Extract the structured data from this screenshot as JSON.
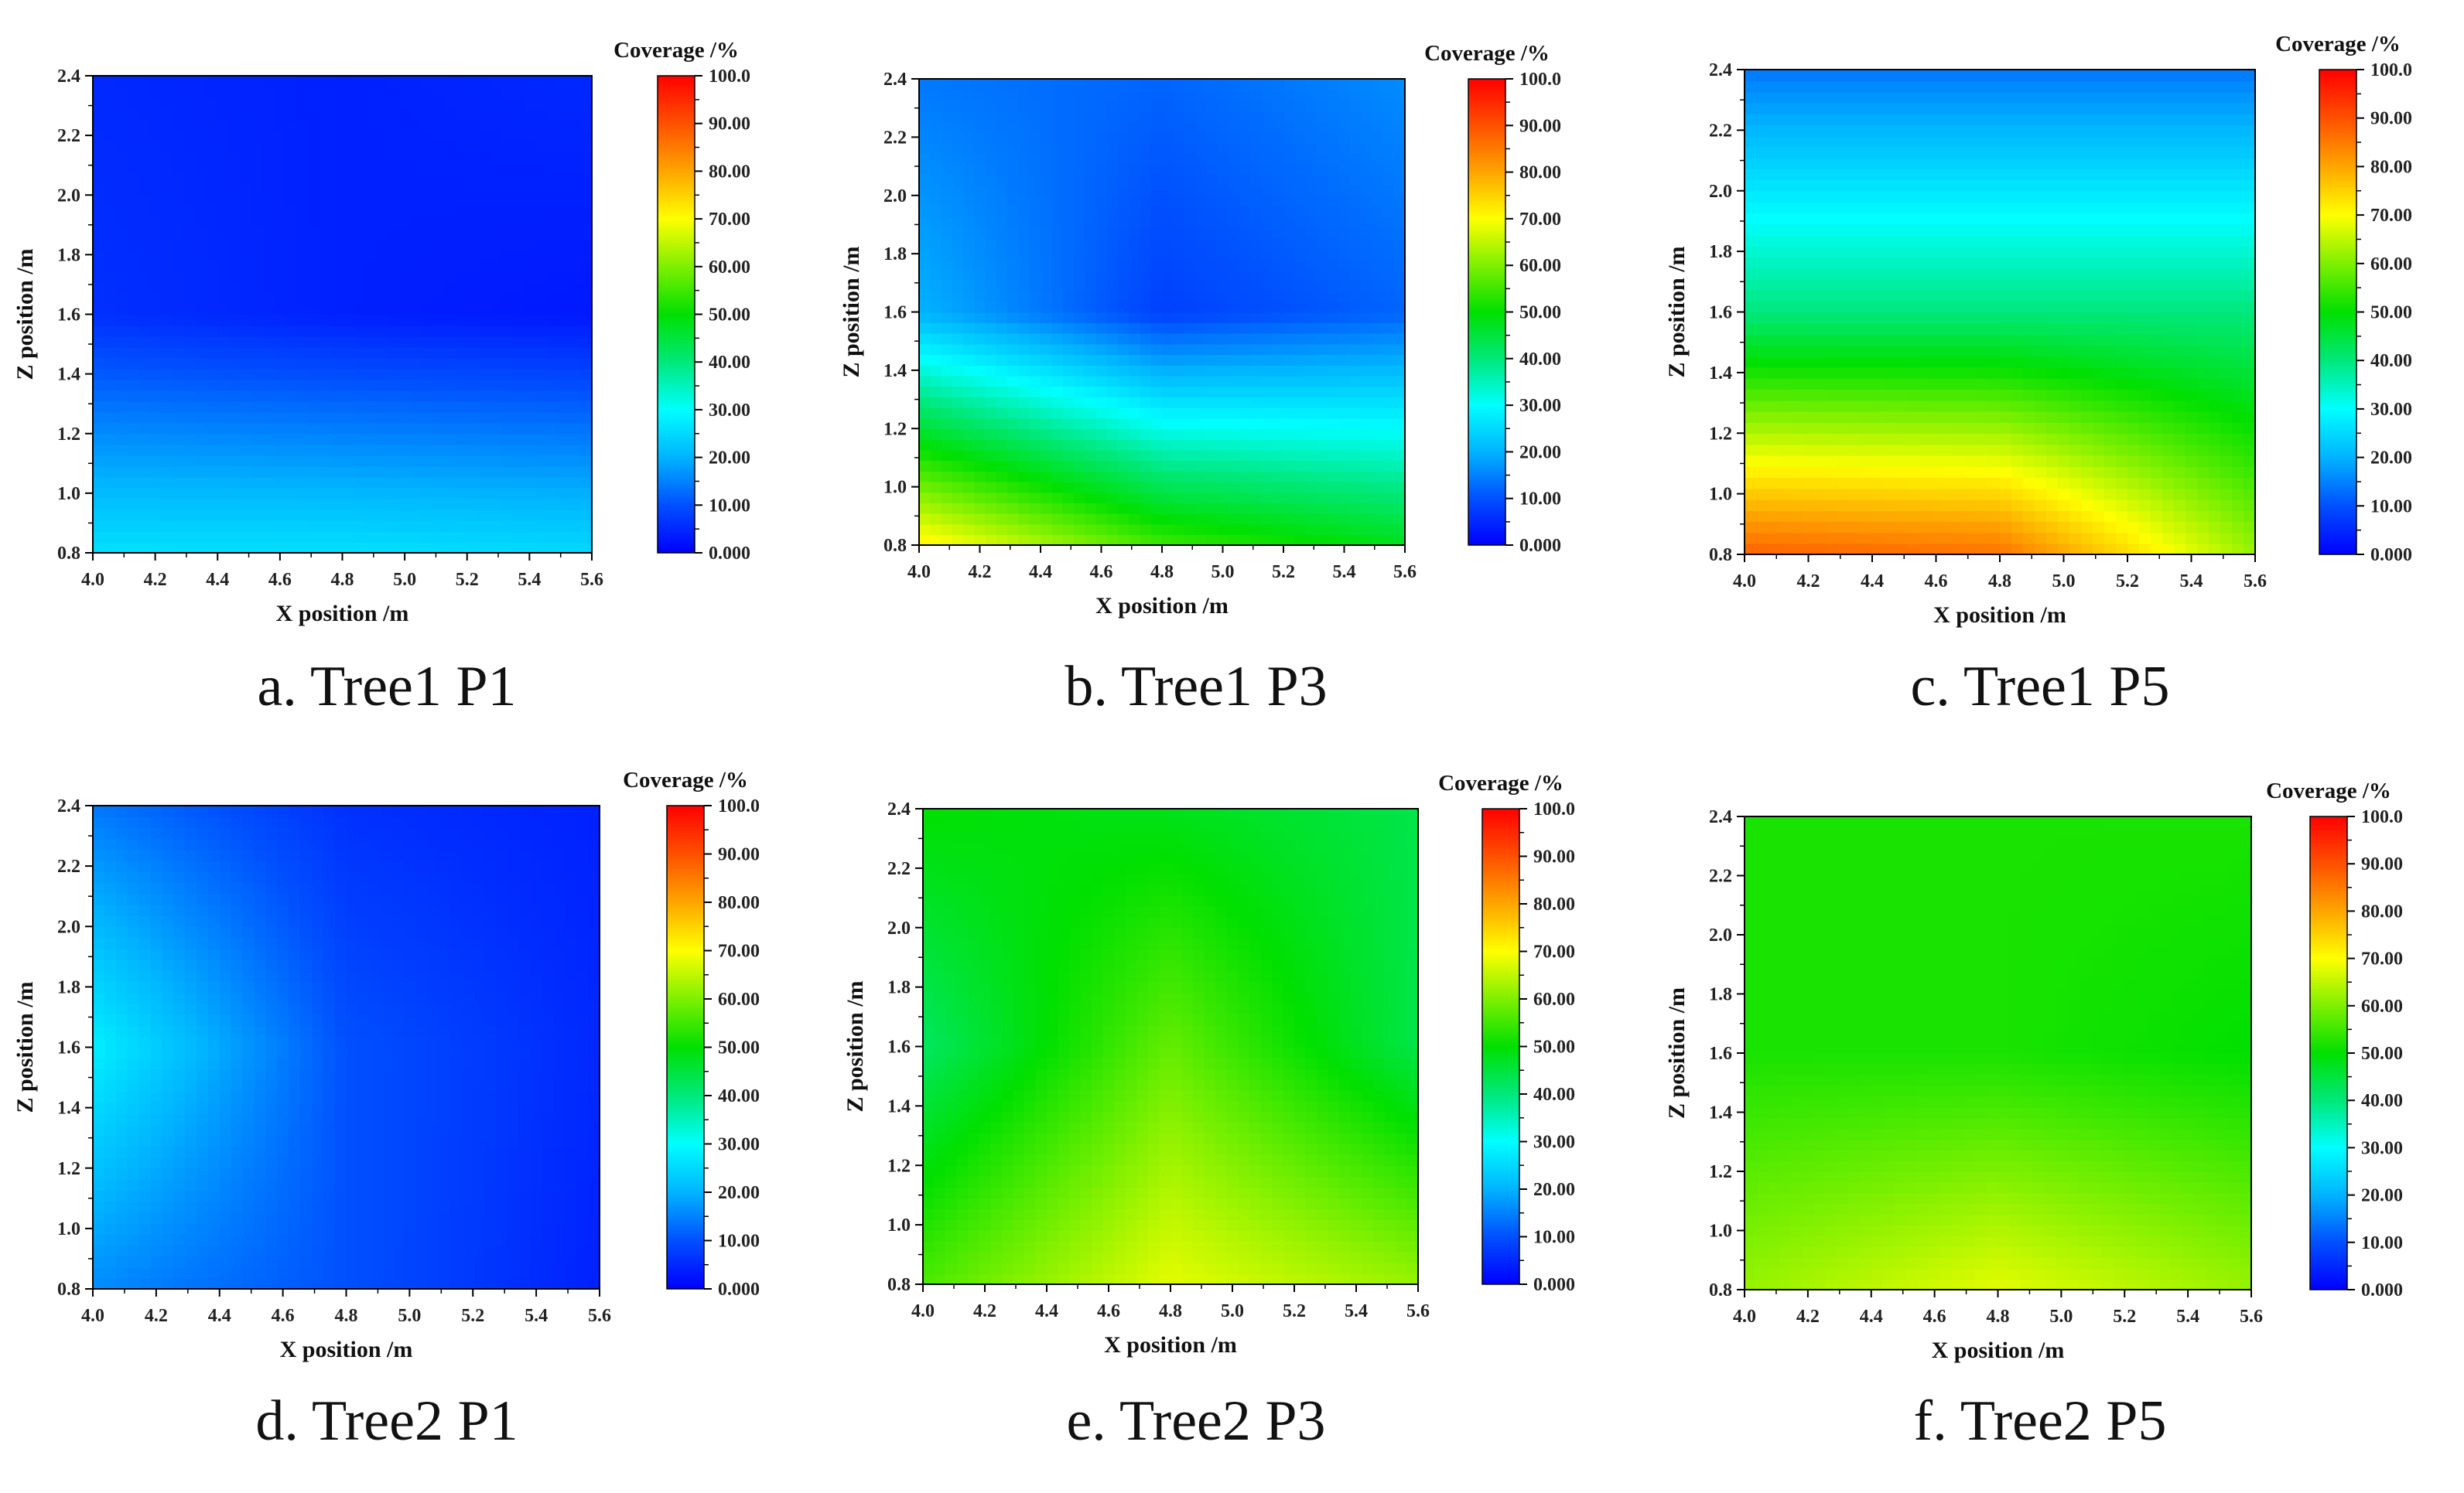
{
  "figure": {
    "caption_font": "serif",
    "colorbar": {
      "title": "Coverage /%",
      "ticks": [
        "100.0",
        "90.00",
        "80.00",
        "70.00",
        "60.00",
        "50.00",
        "40.00",
        "30.00",
        "20.00",
        "10.00",
        "0.000"
      ],
      "tick_values": [
        100,
        90,
        80,
        70,
        60,
        50,
        40,
        30,
        20,
        10,
        0
      ],
      "stops": [
        "#0000ff",
        "#0050ff",
        "#00b4ff",
        "#00ffff",
        "#00e87a",
        "#00e000",
        "#7ef000",
        "#ffff00",
        "#ffa500",
        "#ff5000",
        "#ff0000"
      ]
    }
  },
  "chart_data": [
    {
      "type": "heatmap",
      "panel": "a",
      "title": "a. Tree1 P1",
      "xlabel": "X position /m",
      "ylabel": "Z position /m",
      "xlim": [
        4.0,
        5.6
      ],
      "ylim": [
        0.8,
        2.4
      ],
      "xticks": [
        "4.0",
        "4.2",
        "4.4",
        "4.6",
        "4.8",
        "5.0",
        "5.2",
        "5.4",
        "5.6"
      ],
      "yticks": [
        "0.8",
        "1.0",
        "1.2",
        "1.4",
        "1.6",
        "1.8",
        "2.0",
        "2.2",
        "2.4"
      ],
      "colorbar_title": "Coverage /%",
      "x": [
        4.0,
        4.8,
        5.6
      ],
      "z": [
        0.8,
        1.6,
        2.4
      ],
      "values": [
        [
          26,
          26,
          25
        ],
        [
          6,
          4,
          3
        ],
        [
          5,
          4,
          5
        ]
      ]
    },
    {
      "type": "heatmap",
      "panel": "b",
      "title": "b. Tree1 P3",
      "xlabel": "X position /m",
      "ylabel": "Z position /m",
      "xlim": [
        4.0,
        5.6
      ],
      "ylim": [
        0.8,
        2.4
      ],
      "xticks": [
        "4.0",
        "4.2",
        "4.4",
        "4.6",
        "4.8",
        "5.0",
        "5.2",
        "5.4",
        "5.6"
      ],
      "yticks": [
        "0.8",
        "1.0",
        "1.2",
        "1.4",
        "1.6",
        "1.8",
        "2.0",
        "2.2",
        "2.4"
      ],
      "colorbar_title": "Coverage /%",
      "x": [
        4.0,
        4.8,
        5.6
      ],
      "z": [
        0.8,
        1.6,
        2.4
      ],
      "values": [
        [
          72,
          55,
          48
        ],
        [
          20,
          8,
          12
        ],
        [
          14,
          12,
          16
        ]
      ]
    },
    {
      "type": "heatmap",
      "panel": "c",
      "title": "c. Tree1 P5",
      "xlabel": "X position /m",
      "ylabel": "Z position /m",
      "xlim": [
        4.0,
        5.6
      ],
      "ylim": [
        0.8,
        2.4
      ],
      "xticks": [
        "4.0",
        "4.2",
        "4.4",
        "4.6",
        "4.8",
        "5.0",
        "5.2",
        "5.4",
        "5.6"
      ],
      "yticks": [
        "0.8",
        "1.0",
        "1.2",
        "1.4",
        "1.6",
        "1.8",
        "2.0",
        "2.2",
        "2.4"
      ],
      "colorbar_title": "Coverage /%",
      "x": [
        4.0,
        4.8,
        5.6
      ],
      "z": [
        0.8,
        1.6,
        2.4
      ],
      "values": [
        [
          88,
          86,
          62
        ],
        [
          40,
          40,
          40
        ],
        [
          14,
          14,
          14
        ]
      ]
    },
    {
      "type": "heatmap",
      "panel": "d",
      "title": "d. Tree2 P1",
      "xlabel": "X position /m",
      "ylabel": "Z position /m",
      "xlim": [
        4.0,
        5.6
      ],
      "ylim": [
        0.8,
        2.4
      ],
      "xticks": [
        "4.0",
        "4.2",
        "4.4",
        "4.6",
        "4.8",
        "5.0",
        "5.2",
        "5.4",
        "5.6"
      ],
      "yticks": [
        "0.8",
        "1.0",
        "1.2",
        "1.4",
        "1.6",
        "1.8",
        "2.0",
        "2.2",
        "2.4"
      ],
      "colorbar_title": "Coverage /%",
      "x": [
        4.0,
        4.8,
        5.6
      ],
      "z": [
        0.8,
        1.6,
        2.4
      ],
      "values": [
        [
          16,
          10,
          4
        ],
        [
          28,
          10,
          5
        ],
        [
          14,
          6,
          4
        ]
      ]
    },
    {
      "type": "heatmap",
      "panel": "e",
      "title": "e. Tree2 P3",
      "xlabel": "X position /m",
      "ylabel": "Z position /m",
      "xlim": [
        4.0,
        5.6
      ],
      "ylim": [
        0.8,
        2.4
      ],
      "xticks": [
        "4.0",
        "4.2",
        "4.4",
        "4.6",
        "4.8",
        "5.0",
        "5.2",
        "5.4",
        "5.6"
      ],
      "yticks": [
        "0.8",
        "1.0",
        "1.2",
        "1.4",
        "1.6",
        "1.8",
        "2.0",
        "2.2",
        "2.4"
      ],
      "colorbar_title": "Coverage /%",
      "x": [
        4.0,
        4.8,
        5.6
      ],
      "z": [
        0.8,
        1.6,
        2.4
      ],
      "values": [
        [
          56,
          68,
          62
        ],
        [
          42,
          58,
          44
        ],
        [
          50,
          48,
          44
        ]
      ]
    },
    {
      "type": "heatmap",
      "panel": "f",
      "title": "f. Tree2 P5",
      "xlabel": "X position /m",
      "ylabel": "Z position /m",
      "xlim": [
        4.0,
        5.6
      ],
      "ylim": [
        0.8,
        2.4
      ],
      "xticks": [
        "4.0",
        "4.2",
        "4.4",
        "4.6",
        "4.8",
        "5.0",
        "5.2",
        "5.4",
        "5.6"
      ],
      "yticks": [
        "0.8",
        "1.0",
        "1.2",
        "1.4",
        "1.6",
        "1.8",
        "2.0",
        "2.2",
        "2.4"
      ],
      "colorbar_title": "Coverage /%",
      "x": [
        4.0,
        4.8,
        5.6
      ],
      "z": [
        0.8,
        1.6,
        2.4
      ],
      "values": [
        [
          62,
          68,
          62
        ],
        [
          52,
          52,
          50
        ],
        [
          52,
          52,
          52
        ]
      ]
    }
  ]
}
